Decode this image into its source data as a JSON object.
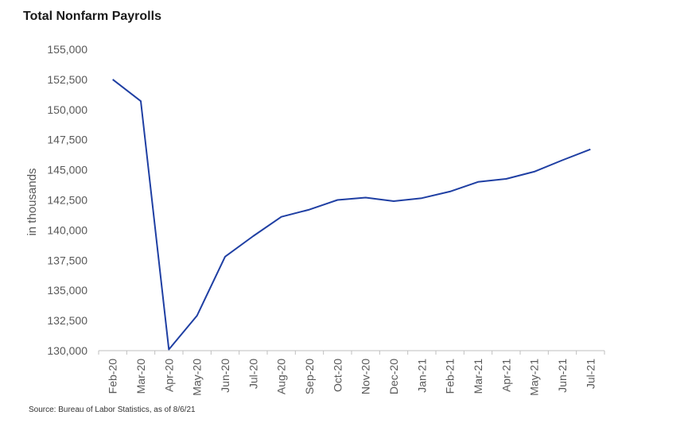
{
  "chart_data": {
    "type": "line",
    "title": "Total Nonfarm Payrolls",
    "ylabel": "in thousands",
    "xlabel": "",
    "source": "Source: Bureau of Labor Statistics, as of 8/6/21",
    "ylim": [
      130000,
      155000
    ],
    "yticks": [
      "155,000",
      "152,500",
      "150,000",
      "147,500",
      "145,000",
      "142,500",
      "140,000",
      "137,500",
      "135,000",
      "132,500",
      "130,000"
    ],
    "ytick_values": [
      155000,
      152500,
      150000,
      147500,
      145000,
      142500,
      140000,
      137500,
      135000,
      132500,
      130000
    ],
    "categories": [
      "Feb-20",
      "Mar-20",
      "Apr-20",
      "May-20",
      "Jun-20",
      "Jul-20",
      "Aug-20",
      "Sep-20",
      "Oct-20",
      "Nov-20",
      "Dec-20",
      "Jan-21",
      "Feb-21",
      "Mar-21",
      "Apr-21",
      "May-21",
      "Jun-21",
      "Jul-21"
    ],
    "values": [
      152500,
      150700,
      130100,
      132900,
      137800,
      139500,
      141100,
      141700,
      142500,
      142700,
      142400,
      142650,
      143200,
      144000,
      144250,
      144850,
      145800,
      146700
    ],
    "line_color": "#1f3fa3",
    "grid": false
  }
}
